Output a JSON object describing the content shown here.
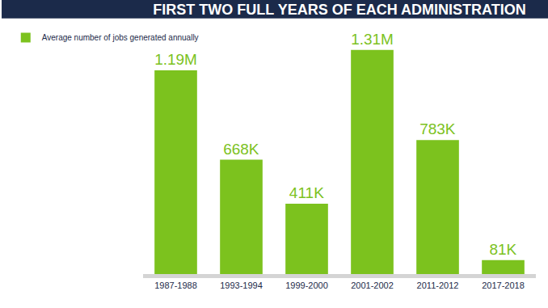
{
  "chart_data": {
    "type": "bar",
    "title": "FIRST TWO FULL YEARS OF EACH ADMINISTRATION",
    "categories": [
      "1987-1988",
      "1993-1994",
      "1999-2000",
      "2001-2002",
      "2011-2012",
      "2017-2018"
    ],
    "series": [
      {
        "name": "Average number of jobs generated annually",
        "color": "#7cc21e",
        "values": [
          1190000,
          668000,
          411000,
          1310000,
          783000,
          81000
        ],
        "value_labels": [
          "1.19M",
          "668K",
          "411K",
          "1.31M",
          "783K",
          "81K"
        ]
      }
    ],
    "ylim": [
      0,
      1450000
    ],
    "data_labels": true,
    "tick_labels": "x",
    "legend": "upper left",
    "grid": false
  }
}
